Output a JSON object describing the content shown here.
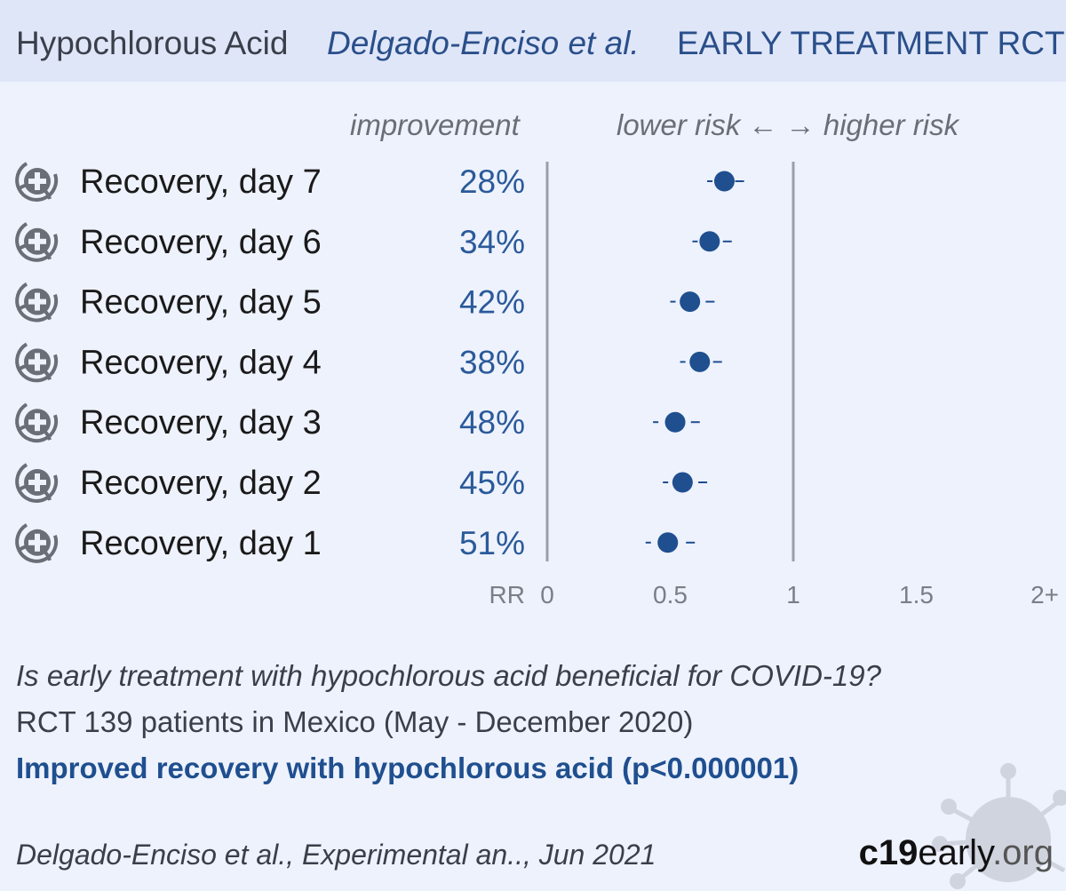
{
  "header": {
    "drug": "Hypochlorous Acid",
    "authors": "Delgado-Enciso et al.",
    "study_type": "EARLY TREATMENT RCT"
  },
  "column_headers": {
    "improvement": "improvement",
    "risk_direction": "lower risk ← → higher risk"
  },
  "axis_label_rr": "RR",
  "outcome_icon": "recovery-icon",
  "colors": {
    "point": "#1f4f8f",
    "axis_line": "#9aa0aa",
    "text": "#3a3f4a",
    "improvement_text": "#2a5a9a"
  },
  "chart_data": {
    "type": "scatter",
    "subtype": "forest-plot",
    "outcomes": [
      {
        "label": "Recovery, day 7",
        "improvement": "28%",
        "rr": 0.72,
        "ci_low": 0.65,
        "ci_high": 0.8
      },
      {
        "label": "Recovery, day 6",
        "improvement": "34%",
        "rr": 0.66,
        "ci_low": 0.59,
        "ci_high": 0.75
      },
      {
        "label": "Recovery, day 5",
        "improvement": "42%",
        "rr": 0.58,
        "ci_low": 0.5,
        "ci_high": 0.68
      },
      {
        "label": "Recovery, day 4",
        "improvement": "38%",
        "rr": 0.62,
        "ci_low": 0.54,
        "ci_high": 0.71
      },
      {
        "label": "Recovery, day 3",
        "improvement": "48%",
        "rr": 0.52,
        "ci_low": 0.43,
        "ci_high": 0.62
      },
      {
        "label": "Recovery, day 2",
        "improvement": "45%",
        "rr": 0.55,
        "ci_low": 0.47,
        "ci_high": 0.65
      },
      {
        "label": "Recovery, day 1",
        "improvement": "51%",
        "rr": 0.49,
        "ci_low": 0.4,
        "ci_high": 0.6
      }
    ],
    "x_ticks": [
      "0",
      "0.5",
      "1",
      "1.5",
      "2+"
    ],
    "x_tick_values": [
      0,
      0.5,
      1,
      1.5,
      2
    ],
    "xlim": [
      0,
      2
    ],
    "reference_line": 1
  },
  "summary": {
    "question": "Is early treatment with hypochlorous acid beneficial for COVID-19?",
    "design": "RCT 139 patients in Mexico (May - December 2020)",
    "conclusion": "Improved recovery with hypochlorous acid (p<0.000001)"
  },
  "footer": {
    "citation": "Delgado-Enciso et al., Experimental an.., Jun 2021",
    "brand_part1": "c19",
    "brand_part2": "early",
    "brand_part3": ".org"
  }
}
